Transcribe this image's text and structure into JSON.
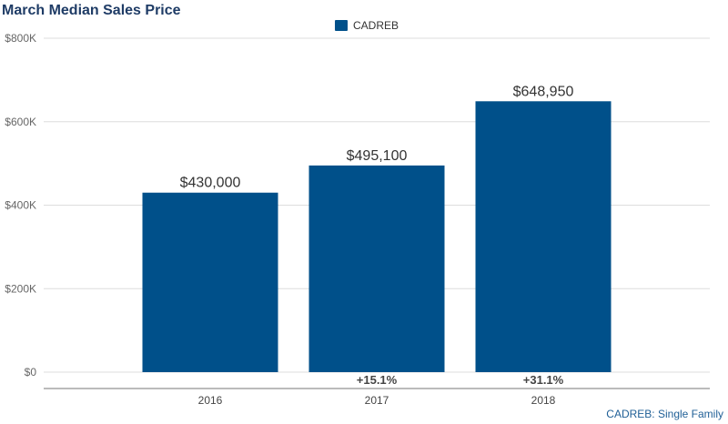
{
  "chart_data": {
    "type": "bar",
    "title": "March Median Sales Price",
    "categories": [
      "2016",
      "2017",
      "2018"
    ],
    "series": [
      {
        "name": "CADREB",
        "values": [
          430000,
          495100,
          648950
        ],
        "color": "#00508a"
      }
    ],
    "data_labels": [
      "$430,000",
      "$495,100",
      "$648,950"
    ],
    "change_labels": [
      "",
      "+15.1%",
      "+31.1%"
    ],
    "y_ticks": [
      0,
      200000,
      400000,
      600000,
      800000
    ],
    "y_tick_labels": [
      "$0",
      "$200K",
      "$400K",
      "$600K",
      "$800K"
    ],
    "ylim": [
      0,
      800000
    ],
    "grid": true,
    "legend": {
      "position": "top-center",
      "label": "CADREB"
    },
    "credit": "CADREB: Single Family",
    "xlabel": "",
    "ylabel": ""
  }
}
